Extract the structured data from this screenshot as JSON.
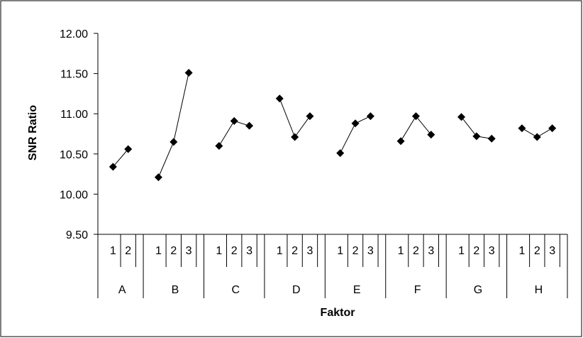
{
  "chart_data": {
    "type": "line",
    "xlabel": "Faktor",
    "ylabel": "SNR Ratio",
    "ylim": [
      9.5,
      12.0
    ],
    "yticks": [
      "12.00",
      "11.50",
      "11.00",
      "10.50",
      "10.00",
      "9.50"
    ],
    "ytick_values": [
      12.0,
      11.5,
      11.0,
      10.5,
      10.0,
      9.5
    ],
    "grid": false,
    "marker": "diamond",
    "series_color": "#000000",
    "factors": [
      {
        "name": "A",
        "levels": [
          "1",
          "2"
        ],
        "values": [
          10.34,
          10.56
        ]
      },
      {
        "name": "B",
        "levels": [
          "1",
          "2",
          "3"
        ],
        "values": [
          10.21,
          10.65,
          11.51
        ]
      },
      {
        "name": "C",
        "levels": [
          "1",
          "2",
          "3"
        ],
        "values": [
          10.6,
          10.91,
          10.85
        ]
      },
      {
        "name": "D",
        "levels": [
          "1",
          "2",
          "3"
        ],
        "values": [
          11.19,
          10.71,
          10.97
        ]
      },
      {
        "name": "E",
        "levels": [
          "1",
          "2",
          "3"
        ],
        "values": [
          10.51,
          10.88,
          10.97
        ]
      },
      {
        "name": "F",
        "levels": [
          "1",
          "2",
          "3"
        ],
        "values": [
          10.66,
          10.97,
          10.74
        ]
      },
      {
        "name": "G",
        "levels": [
          "1",
          "2",
          "3"
        ],
        "values": [
          10.96,
          10.72,
          10.69
        ]
      },
      {
        "name": "H",
        "levels": [
          "1",
          "2",
          "3"
        ],
        "values": [
          10.82,
          10.71,
          10.82
        ]
      }
    ]
  }
}
